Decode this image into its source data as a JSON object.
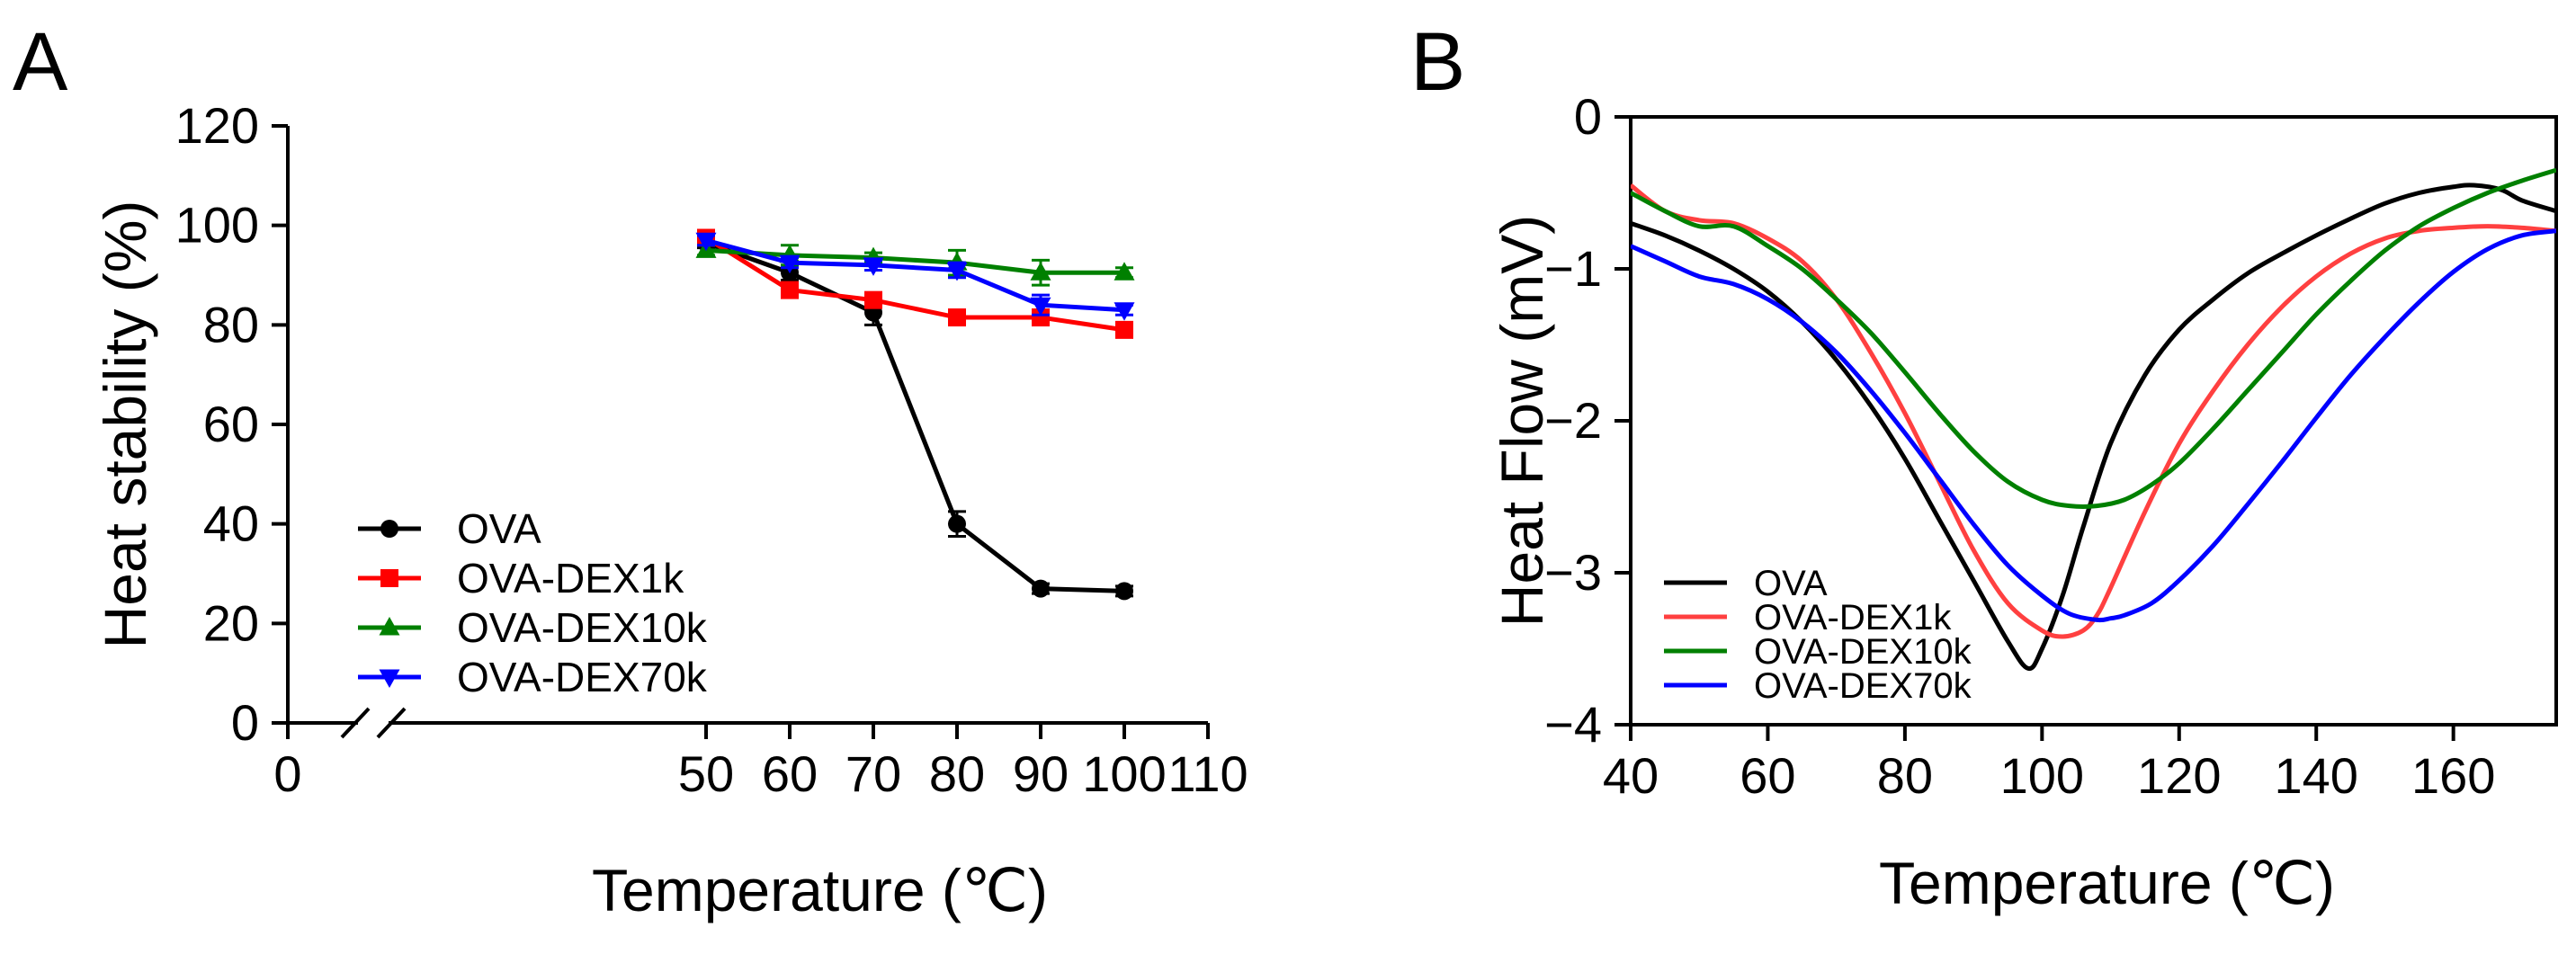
{
  "figure": {
    "panels": [
      "A",
      "B"
    ]
  },
  "chart_data": [
    {
      "panel": "A",
      "type": "line",
      "title": "",
      "xlabel": "Temperature (℃)",
      "ylabel": "Heat stability (%)",
      "xlim": [
        0,
        110
      ],
      "ylim": [
        0,
        120
      ],
      "axis_break": "between 0 and 50",
      "xticks": [
        0,
        50,
        60,
        70,
        80,
        90,
        100,
        110
      ],
      "yticks": [
        0,
        20,
        40,
        60,
        80,
        100,
        120
      ],
      "x": [
        50,
        60,
        70,
        80,
        90,
        100
      ],
      "legend_position": "bottom-left",
      "series": [
        {
          "name": "OVA",
          "color": "#000000",
          "marker": "circle",
          "values": [
            96.5,
            90.5,
            82.5,
            40,
            27,
            26.5
          ],
          "errors": [
            1,
            1.5,
            2.5,
            2.5,
            1,
            1
          ]
        },
        {
          "name": "OVA-DEX1k",
          "color": "#ff0000",
          "marker": "square",
          "values": [
            97.5,
            87,
            85,
            81.5,
            81.5,
            79
          ],
          "errors": [
            1,
            1,
            1,
            1,
            1,
            1
          ]
        },
        {
          "name": "OVA-DEX10k",
          "color": "#008000",
          "marker": "triangle-up",
          "values": [
            95,
            94,
            93.5,
            92.5,
            90.5,
            90.5
          ],
          "errors": [
            1,
            2,
            1,
            2.5,
            2.5,
            1
          ]
        },
        {
          "name": "OVA-DEX70k",
          "color": "#0000ff",
          "marker": "triangle-down",
          "values": [
            97,
            92.5,
            92,
            91,
            84,
            83
          ],
          "errors": [
            1,
            1,
            1,
            1.5,
            2,
            1
          ]
        }
      ]
    },
    {
      "panel": "B",
      "type": "line",
      "title": "",
      "xlabel": "Temperature (℃)",
      "ylabel": "Heat Flow (mV)",
      "xlim": [
        40,
        175
      ],
      "ylim": [
        -4,
        0
      ],
      "xticks": [
        40,
        60,
        80,
        100,
        120,
        140,
        160
      ],
      "yticks": [
        -4,
        -3,
        -2,
        -1,
        0
      ],
      "legend_position": "bottom-left",
      "series": [
        {
          "name": "OVA",
          "color": "#000000",
          "x": [
            40,
            45,
            50,
            55,
            60,
            65,
            70,
            75,
            80,
            85,
            90,
            95,
            98,
            100,
            103,
            106,
            110,
            115,
            120,
            125,
            130,
            135,
            140,
            145,
            150,
            155,
            160,
            163,
            167,
            170,
            175
          ],
          "y": [
            -0.7,
            -0.78,
            -0.88,
            -1.0,
            -1.15,
            -1.35,
            -1.6,
            -1.9,
            -2.25,
            -2.65,
            -3.05,
            -3.45,
            -3.63,
            -3.5,
            -3.15,
            -2.7,
            -2.15,
            -1.7,
            -1.4,
            -1.2,
            -1.03,
            -0.9,
            -0.78,
            -0.67,
            -0.57,
            -0.5,
            -0.46,
            -0.45,
            -0.48,
            -0.55,
            -0.62
          ]
        },
        {
          "name": "OVA-DEX1k",
          "color": "#ff4040",
          "x": [
            40,
            45,
            50,
            55,
            60,
            65,
            70,
            75,
            80,
            85,
            90,
            95,
            100,
            103,
            106,
            108,
            110,
            115,
            120,
            125,
            130,
            135,
            140,
            145,
            150,
            155,
            160,
            165,
            170,
            175
          ],
          "y": [
            -0.45,
            -0.62,
            -0.68,
            -0.7,
            -0.8,
            -0.95,
            -1.2,
            -1.55,
            -1.95,
            -2.4,
            -2.85,
            -3.2,
            -3.38,
            -3.42,
            -3.38,
            -3.28,
            -3.1,
            -2.6,
            -2.15,
            -1.8,
            -1.5,
            -1.25,
            -1.05,
            -0.9,
            -0.8,
            -0.75,
            -0.73,
            -0.72,
            -0.73,
            -0.75
          ]
        },
        {
          "name": "OVA-DEX10k",
          "color": "#008000",
          "x": [
            40,
            45,
            50,
            55,
            60,
            65,
            70,
            75,
            80,
            85,
            90,
            95,
            100,
            104,
            108,
            112,
            116,
            120,
            125,
            130,
            135,
            140,
            145,
            150,
            155,
            160,
            165,
            170,
            175
          ],
          "y": [
            -0.5,
            -0.62,
            -0.72,
            -0.72,
            -0.85,
            -1.0,
            -1.2,
            -1.42,
            -1.68,
            -1.95,
            -2.2,
            -2.4,
            -2.52,
            -2.56,
            -2.56,
            -2.52,
            -2.42,
            -2.28,
            -2.05,
            -1.8,
            -1.55,
            -1.3,
            -1.08,
            -0.88,
            -0.72,
            -0.6,
            -0.5,
            -0.42,
            -0.35
          ]
        },
        {
          "name": "OVA-DEX70k",
          "color": "#0000ff",
          "x": [
            40,
            45,
            50,
            55,
            60,
            65,
            70,
            75,
            80,
            85,
            90,
            95,
            100,
            104,
            108,
            110,
            112,
            116,
            120,
            125,
            130,
            135,
            140,
            145,
            150,
            155,
            160,
            165,
            170,
            175
          ],
          "y": [
            -0.85,
            -0.95,
            -1.05,
            -1.1,
            -1.2,
            -1.35,
            -1.55,
            -1.8,
            -2.08,
            -2.38,
            -2.68,
            -2.95,
            -3.15,
            -3.27,
            -3.31,
            -3.3,
            -3.28,
            -3.2,
            -3.05,
            -2.82,
            -2.55,
            -2.27,
            -1.98,
            -1.7,
            -1.45,
            -1.22,
            -1.02,
            -0.87,
            -0.78,
            -0.75
          ]
        }
      ]
    }
  ]
}
